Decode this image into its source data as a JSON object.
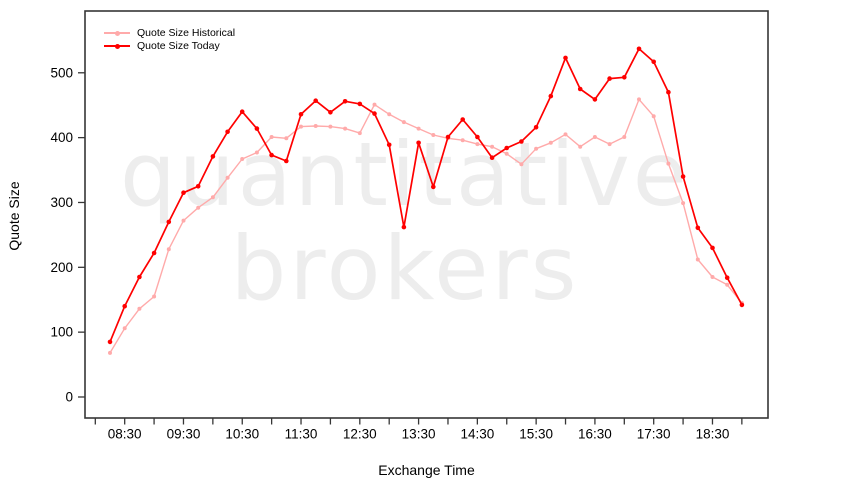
{
  "watermark": {
    "line1": "quantitative",
    "line2": "brokers"
  },
  "axes": {
    "x_title": "Exchange Time",
    "y_title": "Quote Size"
  },
  "legend": [
    {
      "label": "Quote Size Historical",
      "color": "#FFAAAA"
    },
    {
      "label": "Quote Size Today",
      "color": "#FF0000"
    }
  ],
  "chart_data": {
    "type": "line",
    "title": "",
    "xlabel": "Exchange Time",
    "ylabel": "Quote Size",
    "legend_position": "top-left",
    "grid": false,
    "background": "#ffffff",
    "frame_color": "#363636",
    "text_color": "#000000",
    "ylim": [
      -32.4,
      595.3
    ],
    "y_ticks": [
      0,
      100,
      200,
      300,
      400,
      500
    ],
    "xlim_hours": [
      7.8247,
      19.4447
    ],
    "x_minor_tick_start_hour": 8.0,
    "x_minor_tick_end_hour": 19.0,
    "x_minor_tick_step_hours": 0.5,
    "x_tick_labels": [
      "08:30",
      "09:30",
      "10:30",
      "11:30",
      "12:30",
      "13:30",
      "14:30",
      "15:30",
      "16:30",
      "17:30",
      "18:30"
    ],
    "times": [
      "08:15",
      "08:30",
      "08:45",
      "09:00",
      "09:15",
      "09:30",
      "09:45",
      "10:00",
      "10:15",
      "10:30",
      "10:45",
      "11:00",
      "11:15",
      "11:30",
      "11:45",
      "12:00",
      "12:15",
      "12:30",
      "12:45",
      "13:00",
      "13:15",
      "13:30",
      "13:45",
      "14:00",
      "14:15",
      "14:30",
      "14:45",
      "15:00",
      "15:15",
      "15:30",
      "15:45",
      "16:00",
      "16:15",
      "16:30",
      "16:45",
      "17:00",
      "17:15",
      "17:30",
      "17:45",
      "18:00",
      "18:15",
      "18:30",
      "18:45",
      "19:00"
    ],
    "series": [
      {
        "name": "Quote Size Historical",
        "color": "#FFAAAA",
        "line_width": 1.4,
        "marker_radius": 2.0,
        "values": [
          68,
          106,
          136,
          155,
          228,
          272,
          292,
          308,
          338,
          367,
          377,
          401,
          399,
          417,
          418,
          417,
          414,
          407,
          451,
          436,
          424,
          414,
          404,
          399,
          396,
          390,
          386,
          375,
          359,
          383,
          392,
          405,
          386,
          401,
          390,
          401,
          459,
          433,
          360,
          299,
          212,
          185,
          173,
          145
        ]
      },
      {
        "name": "Quote Size Today",
        "color": "#FF0000",
        "line_width": 1.7,
        "marker_radius": 2.3,
        "values": [
          85,
          140,
          185,
          222,
          270,
          315,
          325,
          371,
          409,
          440,
          414,
          373,
          364,
          436,
          457,
          439,
          456,
          452,
          437,
          389,
          262,
          392,
          324,
          401,
          428,
          401,
          369,
          384,
          394,
          416,
          464,
          523,
          475,
          459,
          491,
          493,
          537,
          517,
          470,
          340,
          261,
          230,
          184,
          142
        ]
      }
    ]
  }
}
